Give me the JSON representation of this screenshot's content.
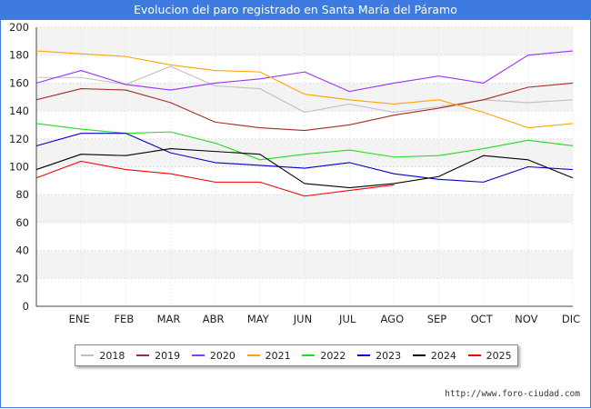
{
  "chart_data": {
    "type": "line",
    "title": "Evolucion del paro registrado en Santa María del Páramo",
    "categories": [
      "ENE",
      "FEB",
      "MAR",
      "ABR",
      "MAY",
      "JUN",
      "JUL",
      "AGO",
      "SEP",
      "OCT",
      "NOV",
      "DIC"
    ],
    "ylim": [
      0,
      200
    ],
    "yticks": [
      0,
      20,
      40,
      60,
      80,
      100,
      120,
      140,
      160,
      180,
      200
    ],
    "grid": "horizontal bands",
    "legend_position": "bottom",
    "series": [
      {
        "name": "2018",
        "color": "#c0c0c0",
        "start": 164,
        "values": [
          164,
          159,
          172,
          158,
          156,
          139,
          145,
          139,
          143,
          148,
          146,
          148
        ]
      },
      {
        "name": "2019",
        "color": "#a52a2a",
        "start": 148,
        "values": [
          156,
          155,
          146,
          132,
          128,
          126,
          130,
          137,
          142,
          148,
          157,
          160
        ]
      },
      {
        "name": "2020",
        "color": "#9b30ff",
        "start": 160,
        "values": [
          169,
          159,
          155,
          160,
          163,
          168,
          154,
          160,
          165,
          160,
          180,
          183
        ]
      },
      {
        "name": "2021",
        "color": "#ffa500",
        "start": 183,
        "values": [
          181,
          179,
          173,
          169,
          168,
          152,
          148,
          145,
          148,
          139,
          128,
          131
        ]
      },
      {
        "name": "2022",
        "color": "#22dd22",
        "start": 131,
        "values": [
          127,
          124,
          125,
          117,
          105,
          109,
          112,
          107,
          108,
          113,
          119,
          115
        ]
      },
      {
        "name": "2023",
        "color": "#0000cc",
        "start": 115,
        "values": [
          124,
          124,
          110,
          103,
          101,
          99,
          103,
          95,
          91,
          89,
          100,
          98
        ]
      },
      {
        "name": "2024",
        "color": "#000000",
        "start": 98,
        "values": [
          109,
          108,
          113,
          111,
          109,
          88,
          85,
          88,
          93,
          108,
          105,
          92
        ]
      },
      {
        "name": "2025",
        "color": "#ff0000",
        "start": 92,
        "values": [
          104,
          98,
          95,
          89,
          89,
          79,
          83,
          87,
          null,
          null,
          null,
          null
        ]
      }
    ]
  },
  "footer": {
    "credit": "http://www.foro-ciudad.com"
  }
}
